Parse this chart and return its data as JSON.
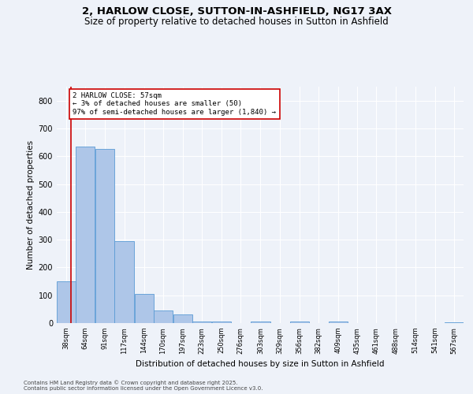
{
  "title1": "2, HARLOW CLOSE, SUTTON-IN-ASHFIELD, NG17 3AX",
  "title2": "Size of property relative to detached houses in Sutton in Ashfield",
  "xlabel": "Distribution of detached houses by size in Sutton in Ashfield",
  "ylabel": "Number of detached properties",
  "bin_labels": [
    "38sqm",
    "64sqm",
    "91sqm",
    "117sqm",
    "144sqm",
    "170sqm",
    "197sqm",
    "223sqm",
    "250sqm",
    "276sqm",
    "303sqm",
    "329sqm",
    "356sqm",
    "382sqm",
    "409sqm",
    "435sqm",
    "461sqm",
    "488sqm",
    "514sqm",
    "541sqm",
    "567sqm"
  ],
  "bar_heights": [
    150,
    635,
    625,
    295,
    105,
    45,
    30,
    5,
    5,
    0,
    5,
    0,
    5,
    0,
    5,
    0,
    0,
    0,
    0,
    0,
    2
  ],
  "bar_color": "#aec6e8",
  "bar_edge_color": "#5b9bd5",
  "annotation_title": "2 HARLOW CLOSE: 57sqm",
  "annotation_line1": "← 3% of detached houses are smaller (50)",
  "annotation_line2": "97% of semi-detached houses are larger (1,840) →",
  "annotation_box_color": "#ffffff",
  "annotation_box_edge": "#cc0000",
  "property_line_color": "#cc0000",
  "ylim": [
    0,
    850
  ],
  "yticks": [
    0,
    100,
    200,
    300,
    400,
    500,
    600,
    700,
    800
  ],
  "footer1": "Contains HM Land Registry data © Crown copyright and database right 2025.",
  "footer2": "Contains public sector information licensed under the Open Government Licence v3.0.",
  "background_color": "#eef2f9",
  "grid_color": "#ffffff",
  "title_fontsize": 9.5,
  "subtitle_fontsize": 8.5,
  "axis_label_fontsize": 7.5,
  "tick_fontsize": 6,
  "annotation_fontsize": 6.5,
  "bin_left_edges": [
    38,
    64,
    91,
    117,
    144,
    170,
    197,
    223,
    250,
    276,
    303,
    329,
    356,
    382,
    409,
    435,
    461,
    488,
    514,
    541,
    567
  ],
  "bin_width": 26,
  "property_line_x": 57,
  "footer_fontsize": 5
}
